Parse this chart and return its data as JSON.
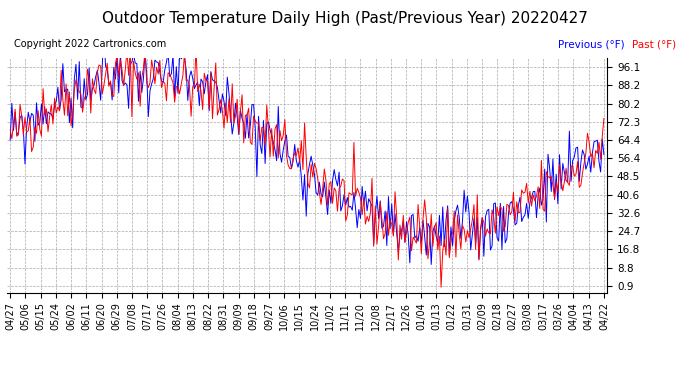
{
  "title": "Outdoor Temperature Daily High (Past/Previous Year) 20220427",
  "copyright": "Copyright 2022 Cartronics.com",
  "ylabel": "(°F)",
  "yticks": [
    96.1,
    88.2,
    80.2,
    72.3,
    64.4,
    56.4,
    48.5,
    40.6,
    32.6,
    24.7,
    16.8,
    8.8,
    0.9
  ],
  "ylim_min": -2,
  "ylim_max": 100,
  "x_labels": [
    "04/27",
    "05/06",
    "05/15",
    "05/24",
    "06/02",
    "06/11",
    "06/20",
    "06/29",
    "07/08",
    "07/17",
    "07/26",
    "08/04",
    "08/13",
    "08/22",
    "08/31",
    "09/09",
    "09/18",
    "09/27",
    "10/06",
    "10/15",
    "10/24",
    "11/02",
    "11/11",
    "11/20",
    "12/08",
    "12/17",
    "12/26",
    "01/04",
    "01/13",
    "01/22",
    "01/31",
    "02/09",
    "02/18",
    "02/27",
    "03/08",
    "03/17",
    "03/26",
    "04/04",
    "04/13",
    "04/22"
  ],
  "past_color": "#ff0000",
  "previous_color": "#0000ff",
  "legend_previous_label": "Previous (°F)",
  "legend_past_label": "Past (°F)",
  "background_color": "#ffffff",
  "grid_color": "#aaaaaa",
  "title_fontsize": 11,
  "tick_fontsize": 7.5,
  "copyright_fontsize": 7
}
